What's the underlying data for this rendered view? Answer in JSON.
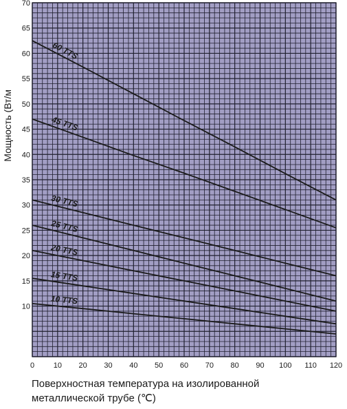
{
  "chart_data": {
    "type": "line",
    "ylabel": "Мощность (Вт/м",
    "xlabel_line1": "Поверхностная температура на изолированной",
    "xlabel_line2": "металлической трубе (℃)",
    "xlim": [
      0,
      120
    ],
    "ylim": [
      0,
      70
    ],
    "x_ticks": [
      0,
      10,
      20,
      30,
      40,
      50,
      60,
      70,
      80,
      90,
      100,
      110,
      120
    ],
    "y_ticks": [
      10,
      15,
      20,
      25,
      30,
      35,
      40,
      45,
      50,
      55,
      60,
      65,
      70
    ],
    "grid": true,
    "colors": {
      "plot_background": "#a29ec4",
      "grid": "#1f1f2e",
      "line": "#1a1a1a"
    },
    "series": [
      {
        "name": "60 TTS",
        "x": [
          0,
          20,
          40,
          60,
          80,
          100,
          120
        ],
        "values": [
          62.5,
          57.3,
          52.0,
          46.7,
          41.5,
          36.2,
          31.0
        ]
      },
      {
        "name": "45 TTS",
        "x": [
          0,
          20,
          40,
          60,
          80,
          100,
          120
        ],
        "values": [
          47.0,
          43.4,
          39.8,
          36.3,
          32.7,
          29.1,
          25.5
        ]
      },
      {
        "name": "30 TTS",
        "x": [
          0,
          20,
          40,
          60,
          80,
          100,
          120
        ],
        "values": [
          31.0,
          28.5,
          26.0,
          23.5,
          21.0,
          18.5,
          16.0
        ]
      },
      {
        "name": "25 TTS",
        "x": [
          0,
          20,
          40,
          60,
          80,
          100,
          120
        ],
        "values": [
          26.0,
          23.5,
          21.0,
          18.5,
          16.0,
          13.5,
          11.0
        ]
      },
      {
        "name": "20 TTS",
        "x": [
          0,
          20,
          40,
          60,
          80,
          100,
          120
        ],
        "values": [
          21.0,
          19.0,
          17.0,
          15.0,
          13.0,
          11.0,
          9.0
        ]
      },
      {
        "name": "15 TTS",
        "x": [
          0,
          20,
          40,
          60,
          80,
          100,
          120
        ],
        "values": [
          15.5,
          14.0,
          12.5,
          11.0,
          9.5,
          8.0,
          6.5
        ]
      },
      {
        "name": "10 TTS",
        "x": [
          0,
          20,
          40,
          60,
          80,
          100,
          120
        ],
        "values": [
          10.5,
          9.5,
          8.5,
          7.5,
          6.5,
          5.5,
          4.5
        ]
      }
    ]
  }
}
